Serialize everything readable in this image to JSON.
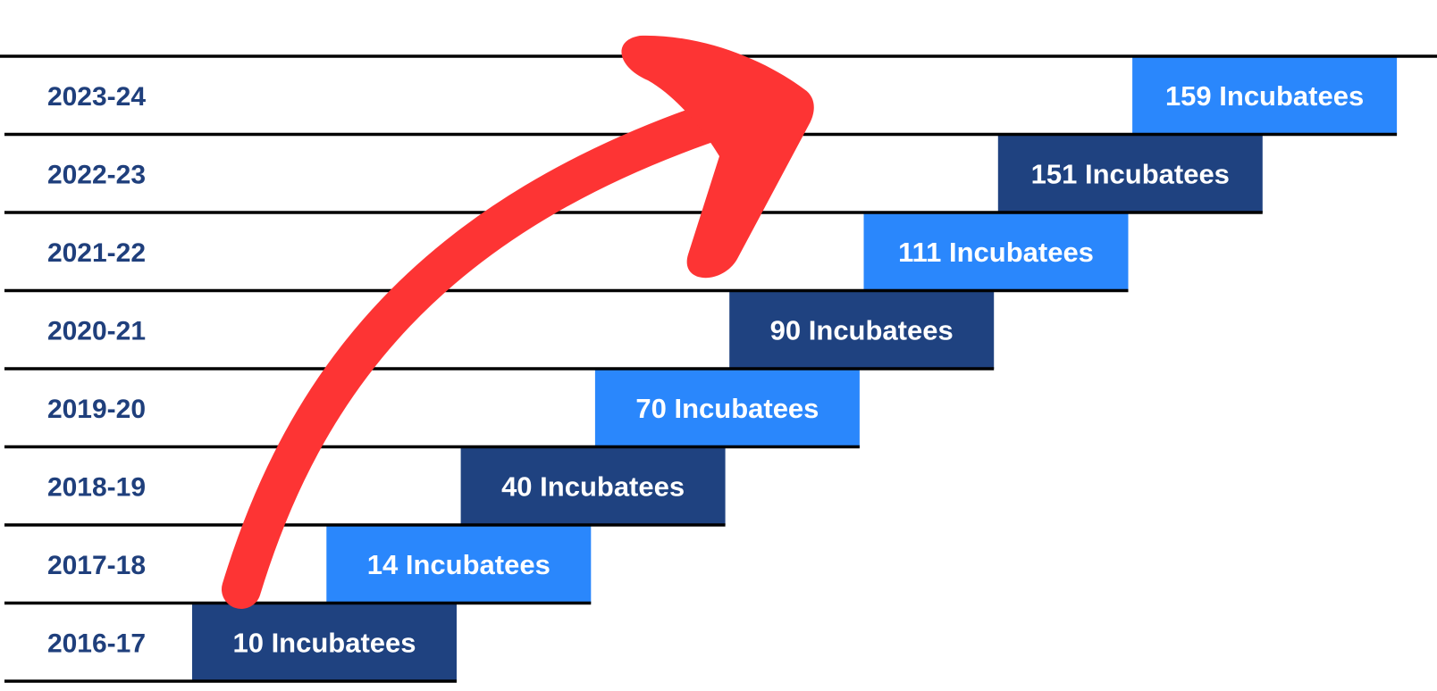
{
  "chart_data": {
    "type": "bar",
    "title": "",
    "xlabel": "",
    "ylabel": "",
    "categories": [
      "2016-17",
      "2017-18",
      "2018-19",
      "2019-20",
      "2020-21",
      "2021-22",
      "2022-23",
      "2023-24"
    ],
    "values": [
      10,
      14,
      40,
      70,
      90,
      111,
      151,
      159
    ],
    "labels": [
      "10 Incubatees",
      "14 Incubatees",
      "40 Incubatees",
      "70 Incubatees",
      "90 Incubatees",
      "111 Incubatees",
      "151 Incubatees",
      "159 Incubatees"
    ],
    "legend": "none",
    "grid": false,
    "annotation": "upward-trend-arrow"
  },
  "colors": {
    "dark_bar": "#1f4280",
    "light_bar": "#2a87fc",
    "year_label": "#1f3f7c",
    "bar_text": "#ffffff",
    "rule": "#000000",
    "arrow": "#fd3434"
  }
}
